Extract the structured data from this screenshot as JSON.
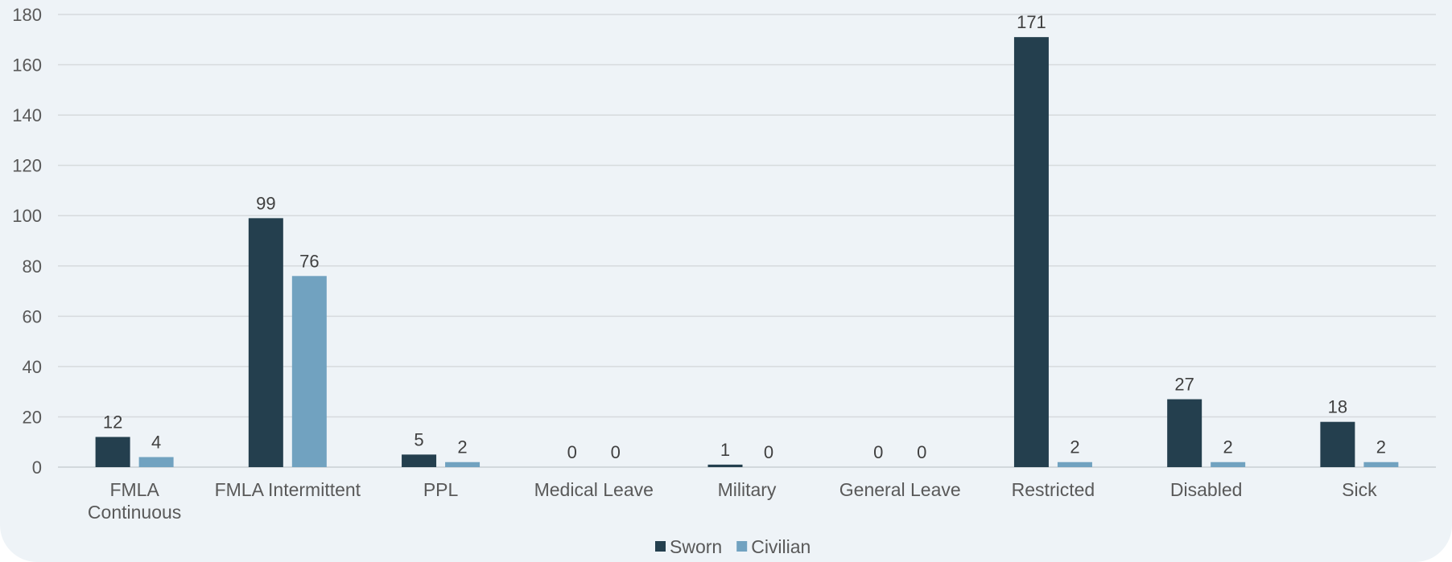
{
  "chart_data": {
    "type": "bar",
    "title": "",
    "xlabel": "",
    "ylabel": "",
    "ylim": [
      0,
      180
    ],
    "yticks": [
      0,
      20,
      40,
      60,
      80,
      100,
      120,
      140,
      160,
      180
    ],
    "grid": true,
    "legend_position": "bottom",
    "categories": [
      [
        "FMLA",
        "Continuous"
      ],
      [
        "FMLA Intermittent"
      ],
      [
        "PPL"
      ],
      [
        "Medical Leave"
      ],
      [
        "Military"
      ],
      [
        "General Leave"
      ],
      [
        "Restricted"
      ],
      [
        "Disabled"
      ],
      [
        "Sick"
      ]
    ],
    "series": [
      {
        "name": "Sworn",
        "color": "#243f4e",
        "values": [
          12,
          99,
          5,
          0,
          1,
          0,
          171,
          27,
          18
        ]
      },
      {
        "name": "Civilian",
        "color": "#71a2c0",
        "values": [
          4,
          76,
          2,
          0,
          0,
          0,
          2,
          2,
          2
        ]
      }
    ]
  }
}
